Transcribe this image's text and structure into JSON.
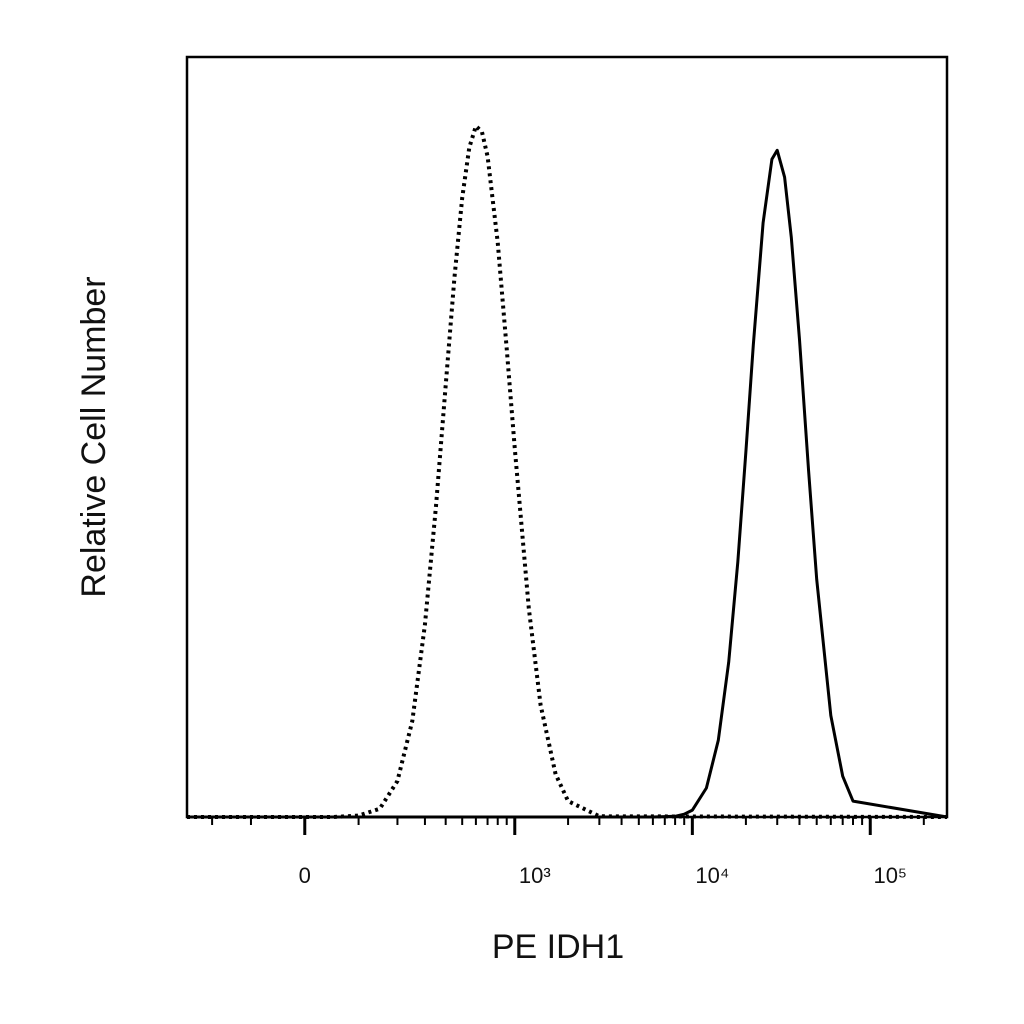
{
  "chart_data": {
    "type": "line",
    "xlabel": "PE IDH1",
    "ylabel": "Relative Cell Number",
    "xscale": "asinh",
    "xlim": [
      -290,
      270000
    ],
    "ylim": [
      0,
      110
    ],
    "xticks": [
      0,
      {
        "value": 1000,
        "label": "10³"
      },
      {
        "value": 10000,
        "label": "10⁴"
      },
      {
        "value": 100000,
        "label": "10⁵"
      }
    ],
    "xminor_ticks": [
      -200,
      -100,
      100,
      200,
      300,
      400,
      500,
      600,
      700,
      800,
      900,
      2000,
      3000,
      4000,
      5000,
      6000,
      7000,
      8000,
      9000,
      20000,
      30000,
      40000,
      50000,
      60000,
      70000,
      80000,
      90000,
      200000
    ],
    "series": [
      {
        "color": "#000000",
        "dash": "dotted",
        "x": [
          -290,
          50,
          100,
          150,
          200,
          250,
          300,
          350,
          400,
          450,
          500,
          550,
          600,
          650,
          700,
          800,
          900,
          1000,
          1200,
          1400,
          1700,
          2000,
          3000,
          270000
        ],
        "values": [
          0,
          0,
          0.2,
          1.2,
          5.2,
          13.9,
          27.8,
          45,
          62.5,
          78,
          89.6,
          96.9,
          100,
          99.2,
          95.6,
          83.2,
          67.8,
          53.3,
          30.2,
          16.2,
          6.2,
          2.3,
          0.1,
          0
        ]
      },
      {
        "color": "#000000",
        "dash": "solid",
        "x": [
          -290,
          6000,
          8000,
          9000,
          10000,
          12000,
          14000,
          16000,
          18000,
          20000,
          22000,
          25000,
          28000,
          30000,
          33000,
          36000,
          40000,
          45000,
          50000,
          60000,
          70000,
          80000,
          270000
        ],
        "values": [
          0,
          0,
          0.1,
          0.4,
          1,
          4.2,
          11.1,
          22.4,
          36.9,
          52.9,
          68.3,
          86,
          95.2,
          96.5,
          92.6,
          83.9,
          69.1,
          50.1,
          34.4,
          14.7,
          5.9,
          2.3,
          0
        ]
      }
    ]
  }
}
